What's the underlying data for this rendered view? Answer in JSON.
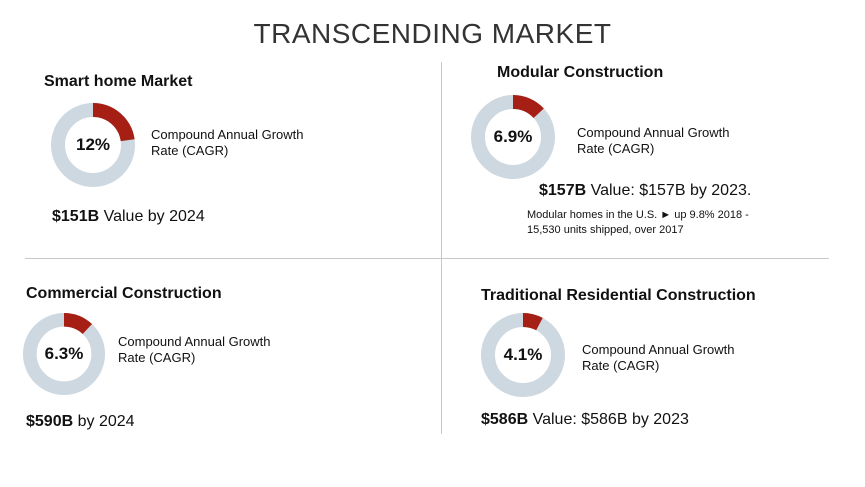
{
  "title": "TRANSCENDING MARKET",
  "colors": {
    "accent": "#a51f14",
    "ring": "#cdd8e0"
  },
  "panels": {
    "smart_home": {
      "heading": "Smart home Market",
      "pct_label": "12%",
      "pct_value": 12,
      "cagr_label": "Compound Annual Growth Rate (CAGR)",
      "value_bold": "$151B",
      "value_text": " Value by 2024"
    },
    "modular": {
      "heading": "Modular Construction",
      "pct_label": "6.9%",
      "pct_value": 6.9,
      "cagr_label": "Compound Annual Growth Rate (CAGR)",
      "value_bold": "$157B",
      "value_text": " Value: $157B by 2023.",
      "note": "Modular homes in the U.S. ► up 9.8% 2018 - 15,530 units shipped, over 2017"
    },
    "commercial": {
      "heading": "Commercial Construction",
      "pct_label": "6.3%",
      "pct_value": 6.3,
      "cagr_label": "Compound Annual Growth Rate (CAGR)",
      "value_bold": "$590B",
      "value_text": " by 2024"
    },
    "traditional": {
      "heading": "Traditional Residential Construction",
      "pct_label": "4.1%",
      "pct_value": 4.1,
      "cagr_label": "Compound Annual Growth Rate (CAGR)",
      "value_bold": "$586B",
      "value_text": " Value: $586B by 2023"
    }
  }
}
